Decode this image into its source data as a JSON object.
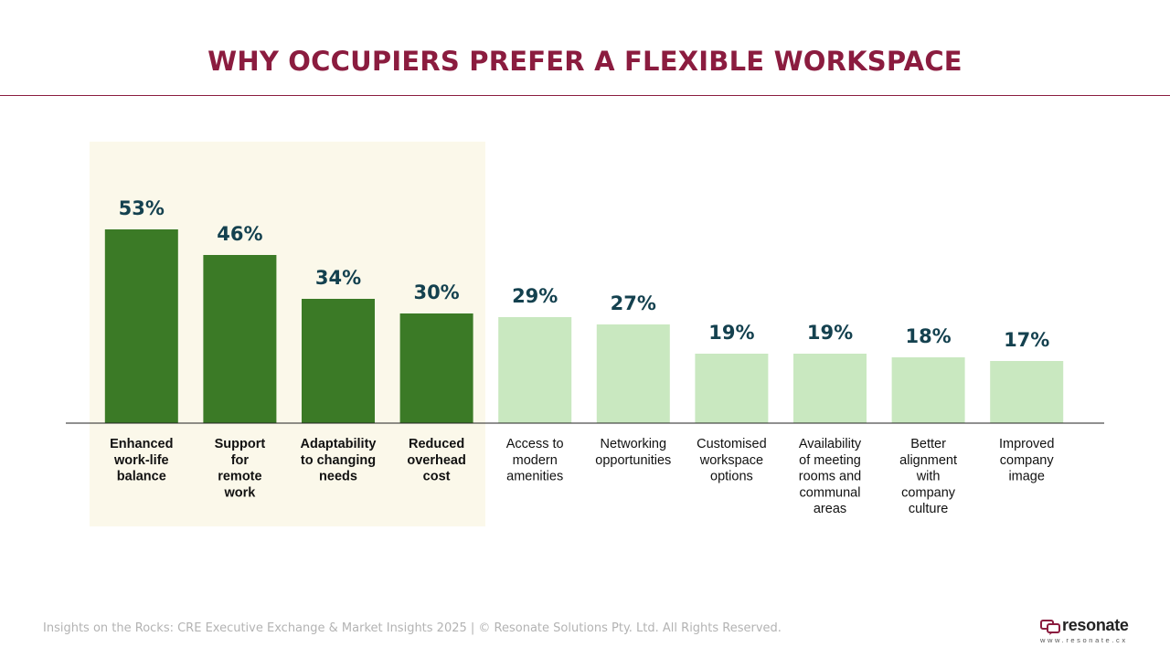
{
  "title": "WHY OCCUPIERS PREFER A FLEXIBLE WORKSPACE",
  "footer": "Insights on the Rocks: CRE Executive Exchange & Market Insights 2025 | © Resonate Solutions Pty. Ltd. All Rights Reserved.",
  "logo": {
    "word": "resonate",
    "url": "www.resonate.cx",
    "icon": "speech-bubbles-icon"
  },
  "colors": {
    "title": "#8b1c3f",
    "bar_highlight": "#3b7a26",
    "bar_other": "#c9e8c0",
    "highlight_background": "#fbf8ea",
    "value_label": "#14414f"
  },
  "chart_data": {
    "type": "bar",
    "title": "WHY OCCUPIERS PREFER A FLEXIBLE WORKSPACE",
    "xlabel": "",
    "ylabel": "",
    "categories": [
      "Enhanced work-life balance",
      "Support for remote work",
      "Adaptability to changing needs",
      "Reduced overhead cost",
      "Access to modern amenities",
      "Networking opportunities",
      "Customised workspace options",
      "Availability of meeting rooms and communal areas",
      "Better alignment with company culture",
      "Improved company image"
    ],
    "category_lines": [
      [
        "Enhanced",
        "work-life",
        "balance"
      ],
      [
        "Support",
        "for",
        "remote",
        "work"
      ],
      [
        "Adaptability",
        "to changing",
        "needs"
      ],
      [
        "Reduced",
        "overhead",
        "cost"
      ],
      [
        "Access to",
        "modern",
        "amenities"
      ],
      [
        "Networking",
        "opportunities"
      ],
      [
        "Customised",
        "workspace",
        "options"
      ],
      [
        "Availability",
        "of meeting",
        "rooms and",
        "communal",
        "areas"
      ],
      [
        "Better",
        "alignment",
        "with",
        "company",
        "culture"
      ],
      [
        "Improved",
        "company",
        "image"
      ]
    ],
    "values": [
      53,
      46,
      34,
      30,
      29,
      27,
      19,
      19,
      18,
      17
    ],
    "value_labels": [
      "53%",
      "46%",
      "34%",
      "30%",
      "29%",
      "27%",
      "19%",
      "19%",
      "18%",
      "17%"
    ],
    "highlighted": [
      true,
      true,
      true,
      true,
      false,
      false,
      false,
      false,
      false,
      false
    ],
    "grid": false,
    "legend": "none"
  }
}
